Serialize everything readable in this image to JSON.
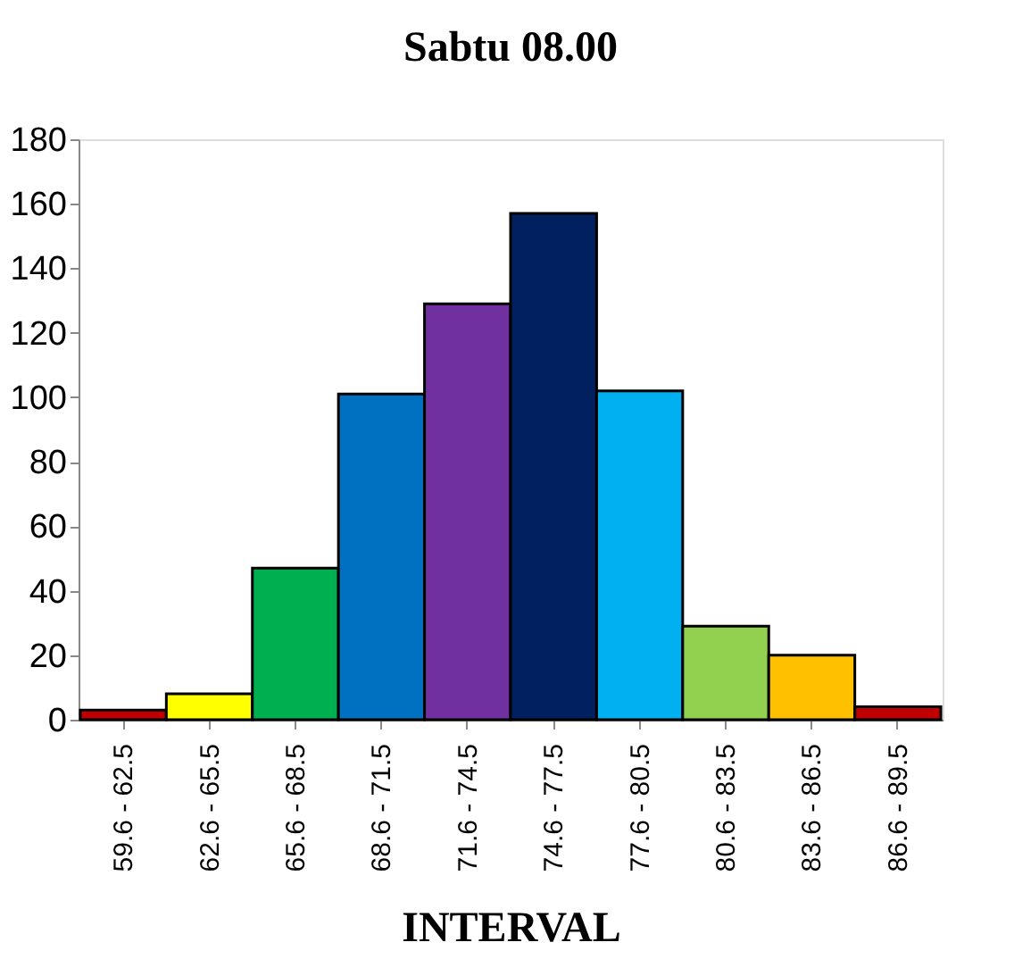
{
  "chart_data": {
    "type": "bar",
    "title": "Sabtu 08.00",
    "xlabel": "INTERVAL",
    "categories": [
      "59.6 - 62.5",
      "62.6 - 65.5",
      "65.6 - 68.5",
      "68.6 - 71.5",
      "71.6 - 74.5",
      "74.6 - 77.5",
      "77.6 - 80.5",
      "80.6 - 83.5",
      "83.6 - 86.5",
      "86.6 - 89.5"
    ],
    "values": [
      3,
      8,
      47,
      101,
      129,
      157,
      102,
      29,
      20,
      4
    ],
    "colors": [
      "#c00000",
      "#ffff00",
      "#00b050",
      "#0070c0",
      "#7030a0",
      "#002060",
      "#00b0f0",
      "#92d050",
      "#ffc000",
      "#c00000"
    ],
    "ylim": [
      0,
      180
    ],
    "yticks": [
      0,
      20,
      40,
      60,
      80,
      100,
      120,
      140,
      160,
      180
    ],
    "grid": false,
    "legend": false
  }
}
